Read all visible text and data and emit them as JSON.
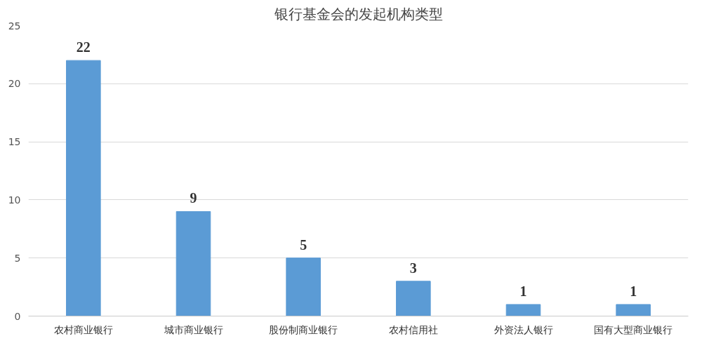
{
  "chart_data": {
    "type": "bar",
    "title": "银行基金会的发起机构类型",
    "categories": [
      "农村商业银行",
      "城市商业银行",
      "股份制商业银行",
      "农村信用社",
      "外资法人银行",
      "国有大型商业银行"
    ],
    "values": [
      22,
      9,
      5,
      3,
      1,
      1
    ],
    "color": "#5b9bd5",
    "ylim": [
      0,
      25
    ],
    "yticks": [
      0,
      5,
      10,
      15,
      20,
      25
    ],
    "grid": "y",
    "data_labels": true
  }
}
